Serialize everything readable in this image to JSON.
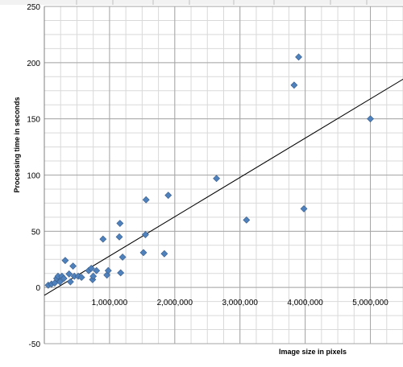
{
  "spreadsheet": {
    "visible_column_letters": [
      "",
      "",
      "",
      "",
      "",
      "",
      "",
      ""
    ]
  },
  "colors": {
    "point": "#4f81bd",
    "point_edge": "#385d8a",
    "gridline": "#a6a6a6",
    "minor_gridline": "#d9d9d9",
    "trendline": "#000000",
    "background": "#ffffff"
  },
  "chart_data": {
    "type": "scatter",
    "title": "",
    "xlabel": "Image size in pixels",
    "ylabel": "Processing time in seconds",
    "xlim": [
      0,
      5500000
    ],
    "ylim": [
      -50,
      250
    ],
    "x_ticks": [
      1000000,
      2000000,
      3000000,
      4000000,
      5000000
    ],
    "x_tick_labels": [
      "1,000,000",
      "2,000,000",
      "3,000,000",
      "4,000,000",
      "5,000,000"
    ],
    "y_ticks": [
      -50,
      0,
      50,
      100,
      150,
      200,
      250
    ],
    "y_tick_labels": [
      "-50",
      "0",
      "50",
      "100",
      "150",
      "200",
      "250"
    ],
    "grid": true,
    "legend": "none",
    "series": [
      {
        "points": [
          [
            60000,
            2
          ],
          [
            110000,
            3
          ],
          [
            160000,
            4
          ],
          [
            190000,
            8
          ],
          [
            210000,
            10
          ],
          [
            240000,
            5
          ],
          [
            270000,
            10
          ],
          [
            300000,
            8
          ],
          [
            320000,
            24
          ],
          [
            380000,
            12
          ],
          [
            400000,
            5
          ],
          [
            440000,
            19
          ],
          [
            460000,
            10
          ],
          [
            520000,
            10
          ],
          [
            570000,
            9
          ],
          [
            680000,
            15
          ],
          [
            720000,
            17
          ],
          [
            740000,
            7
          ],
          [
            750000,
            10
          ],
          [
            800000,
            15
          ],
          [
            900000,
            43
          ],
          [
            960000,
            11
          ],
          [
            980000,
            15
          ],
          [
            1150000,
            45
          ],
          [
            1160000,
            57
          ],
          [
            1170000,
            13
          ],
          [
            1200000,
            27
          ],
          [
            1520000,
            31
          ],
          [
            1550000,
            47
          ],
          [
            1560000,
            78
          ],
          [
            1840000,
            30
          ],
          [
            1900000,
            82
          ],
          [
            2640000,
            97
          ],
          [
            3100000,
            60
          ],
          [
            3830000,
            180
          ],
          [
            3900000,
            205
          ],
          [
            3980000,
            70
          ],
          [
            5000000,
            150
          ]
        ]
      }
    ],
    "trendline": {
      "x": [
        0,
        5550000
      ],
      "y": [
        -7,
        187
      ]
    }
  }
}
